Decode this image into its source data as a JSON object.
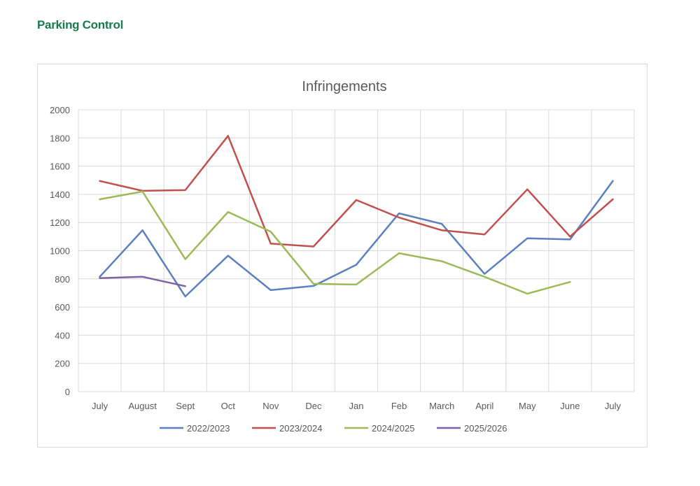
{
  "page": {
    "heading": "Parking Control"
  },
  "chart_data": {
    "type": "line",
    "title": "Infringements",
    "xlabel": "",
    "ylabel": "",
    "categories": [
      "July",
      "August",
      "Sept",
      "Oct",
      "Nov",
      "Dec",
      "Jan",
      "Feb",
      "March",
      "April",
      "May",
      "June",
      "July"
    ],
    "ylim": [
      0,
      2000
    ],
    "yticks": [
      0,
      200,
      400,
      600,
      800,
      1000,
      1200,
      1400,
      1600,
      1800,
      2000
    ],
    "grid": true,
    "legend_position": "bottom",
    "series": [
      {
        "name": "2022/2023",
        "color": "#5b80bf",
        "values": [
          815,
          1145,
          675,
          965,
          720,
          750,
          900,
          1265,
          1190,
          835,
          1088,
          1080,
          1495
        ]
      },
      {
        "name": "2023/2024",
        "color": "#c0504d",
        "values": [
          1495,
          1425,
          1430,
          1815,
          1050,
          1030,
          1360,
          1235,
          1145,
          1115,
          1435,
          1100,
          1365
        ]
      },
      {
        "name": "2024/2025",
        "color": "#9bbb59",
        "values": [
          1365,
          1420,
          940,
          1275,
          1135,
          765,
          760,
          982,
          925,
          815,
          695,
          778,
          null
        ]
      },
      {
        "name": "2025/2026",
        "color": "#8064a2",
        "values": [
          805,
          815,
          748,
          null,
          null,
          null,
          null,
          null,
          null,
          null,
          null,
          null,
          null
        ]
      }
    ]
  }
}
